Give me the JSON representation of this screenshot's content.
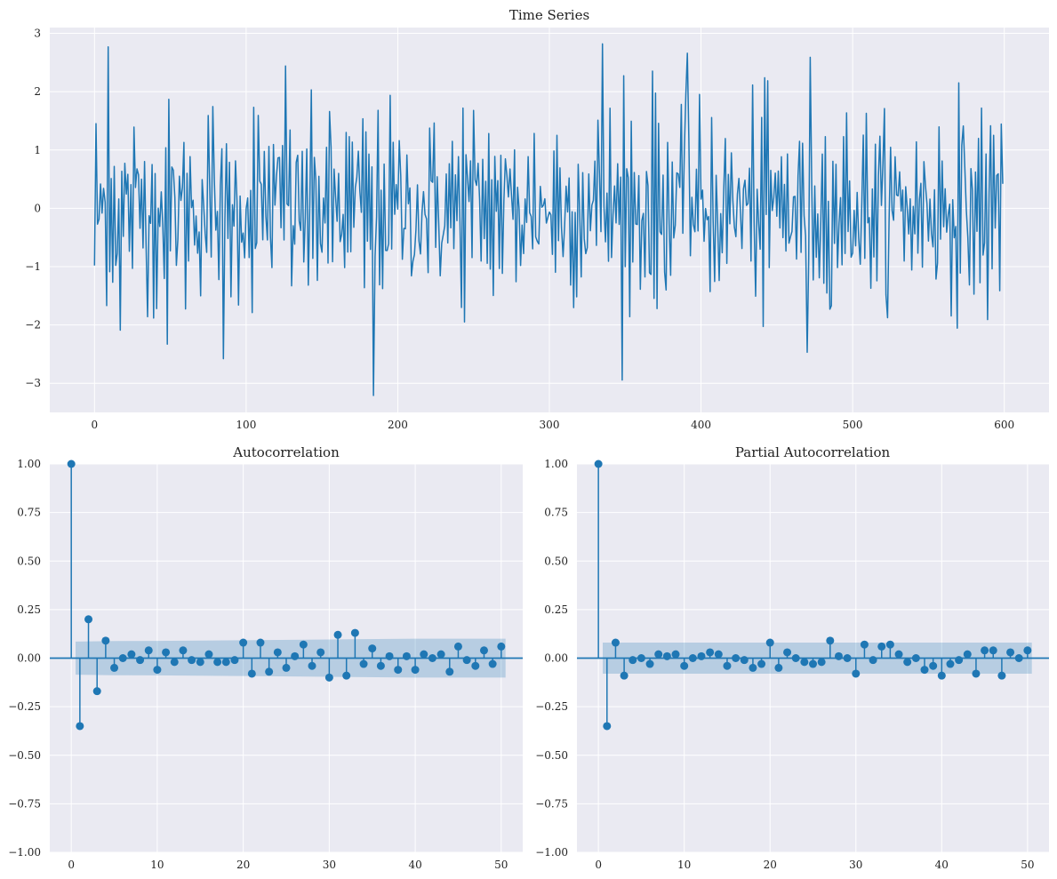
{
  "chart_data": [
    {
      "type": "line",
      "title": "Time Series",
      "xlabel": "",
      "ylabel": "",
      "xlim": [
        -29.5,
        629.5
      ],
      "ylim": [
        -3.5,
        3.1
      ],
      "xticks": [
        0,
        100,
        200,
        300,
        400,
        500,
        600
      ],
      "yticks": [
        -3,
        -2,
        -1,
        0,
        1,
        2,
        3
      ],
      "grid": true,
      "line_color": "#1f77b4",
      "n_points": 600,
      "sample_points": [
        {
          "x": 0,
          "y": -0.98
        },
        {
          "x": 9,
          "y": 2.77
        },
        {
          "x": 17,
          "y": -2.09
        },
        {
          "x": 48,
          "y": -2.33
        },
        {
          "x": 85,
          "y": -2.58
        },
        {
          "x": 126,
          "y": 2.44
        },
        {
          "x": 184,
          "y": -3.21
        },
        {
          "x": 335,
          "y": 2.82
        },
        {
          "x": 391,
          "y": 2.66
        },
        {
          "x": 470,
          "y": -2.47
        },
        {
          "x": 472,
          "y": 2.59
        },
        {
          "x": 599,
          "y": 0.42
        }
      ]
    },
    {
      "type": "stem",
      "title": "Autocorrelation",
      "xlim": [
        -2.5,
        52.5
      ],
      "ylim": [
        -1.0,
        1.0
      ],
      "xticks": [
        0,
        10,
        20,
        30,
        40,
        50
      ],
      "yticks": [
        -1.0,
        -0.75,
        -0.5,
        -0.25,
        0.0,
        0.25,
        0.5,
        0.75,
        1.0
      ],
      "ytick_labels": [
        "−1.00",
        "−0.75",
        "−0.50",
        "−0.25",
        "0.00",
        "0.25",
        "0.50",
        "0.75",
        "1.00"
      ],
      "grid": true,
      "stem_color": "#1f77b4",
      "lags": [
        0,
        1,
        2,
        3,
        4,
        5,
        6,
        7,
        8,
        9,
        10,
        11,
        12,
        13,
        14,
        15,
        16,
        17,
        18,
        19,
        20,
        21,
        22,
        23,
        24,
        25,
        26,
        27,
        28,
        29,
        30,
        31,
        32,
        33,
        34,
        35,
        36,
        37,
        38,
        39,
        40,
        41,
        42,
        43,
        44,
        45,
        46,
        47,
        48,
        49,
        50
      ],
      "values": [
        1.0,
        -0.35,
        0.2,
        -0.17,
        0.09,
        -0.05,
        0.0,
        0.02,
        -0.01,
        0.04,
        -0.06,
        0.03,
        -0.02,
        0.04,
        -0.01,
        -0.02,
        0.02,
        -0.02,
        -0.02,
        -0.01,
        0.08,
        -0.08,
        0.08,
        -0.07,
        0.03,
        -0.05,
        0.01,
        0.07,
        -0.04,
        0.03,
        -0.1,
        0.12,
        -0.09,
        0.13,
        -0.03,
        0.05,
        -0.04,
        0.01,
        -0.06,
        0.01,
        -0.06,
        0.02,
        0.0,
        0.02,
        -0.07,
        0.06,
        -0.01,
        -0.04,
        0.04,
        -0.03,
        0.06
      ],
      "confidence_band": {
        "lags": [
          0.5,
          5,
          10,
          20,
          30,
          40,
          50.5
        ],
        "halfwidth": [
          0.085,
          0.088,
          0.089,
          0.092,
          0.096,
          0.1,
          0.1
        ]
      }
    },
    {
      "type": "stem",
      "title": "Partial Autocorrelation",
      "xlim": [
        -2.5,
        52.5
      ],
      "ylim": [
        -1.0,
        1.0
      ],
      "xticks": [
        0,
        10,
        20,
        30,
        40,
        50
      ],
      "yticks": [
        -1.0,
        -0.75,
        -0.5,
        -0.25,
        0.0,
        0.25,
        0.5,
        0.75,
        1.0
      ],
      "ytick_labels": [
        "−1.00",
        "−0.75",
        "−0.50",
        "−0.25",
        "0.00",
        "0.25",
        "0.50",
        "0.75",
        "1.00"
      ],
      "grid": true,
      "stem_color": "#1f77b4",
      "lags": [
        0,
        1,
        2,
        3,
        4,
        5,
        6,
        7,
        8,
        9,
        10,
        11,
        12,
        13,
        14,
        15,
        16,
        17,
        18,
        19,
        20,
        21,
        22,
        23,
        24,
        25,
        26,
        27,
        28,
        29,
        30,
        31,
        32,
        33,
        34,
        35,
        36,
        37,
        38,
        39,
        40,
        41,
        42,
        43,
        44,
        45,
        46,
        47,
        48,
        49,
        50
      ],
      "values": [
        1.0,
        -0.35,
        0.08,
        -0.09,
        -0.01,
        0.0,
        -0.03,
        0.02,
        0.01,
        0.02,
        -0.04,
        0.0,
        0.01,
        0.03,
        0.02,
        -0.04,
        0.0,
        -0.01,
        -0.05,
        -0.03,
        0.08,
        -0.05,
        0.03,
        0.0,
        -0.02,
        -0.03,
        -0.02,
        0.09,
        0.01,
        0.0,
        -0.08,
        0.07,
        -0.01,
        0.06,
        0.07,
        0.02,
        -0.02,
        0.0,
        -0.06,
        -0.04,
        -0.09,
        -0.03,
        -0.01,
        0.02,
        -0.08,
        0.04,
        0.04,
        -0.09,
        0.03,
        0.0,
        0.04
      ],
      "confidence_band": {
        "lags": [
          0.5,
          50.5
        ],
        "halfwidth": [
          0.08,
          0.08
        ]
      }
    }
  ]
}
